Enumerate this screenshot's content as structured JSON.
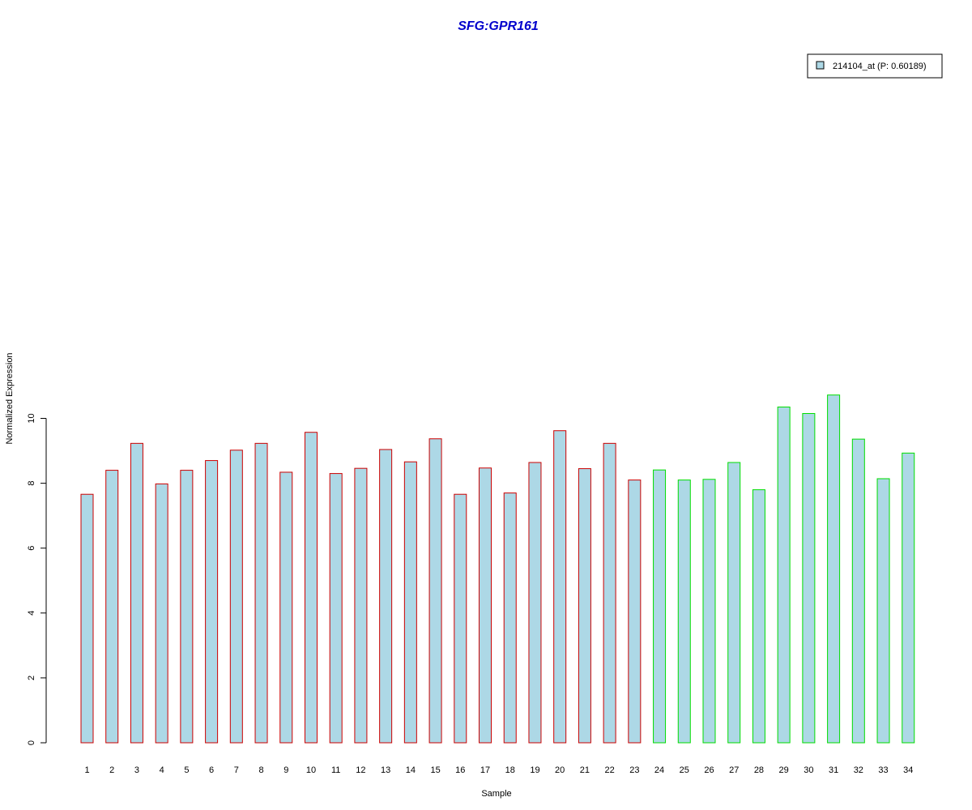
{
  "chart_data": {
    "type": "bar",
    "title": "SFG:GPR161",
    "xlabel": "Sample",
    "ylabel": "Normalized Expression",
    "categories": [
      "1",
      "2",
      "3",
      "4",
      "5",
      "6",
      "7",
      "8",
      "9",
      "10",
      "11",
      "12",
      "13",
      "14",
      "15",
      "16",
      "17",
      "18",
      "19",
      "20",
      "21",
      "22",
      "23",
      "24",
      "25",
      "26",
      "27",
      "28",
      "29",
      "30",
      "31",
      "32",
      "33",
      "34"
    ],
    "series": [
      {
        "name": "214104_at (P: 0.60189)",
        "values": [
          7.66,
          8.4,
          9.23,
          7.98,
          8.4,
          8.7,
          9.02,
          9.23,
          8.34,
          9.57,
          8.3,
          8.46,
          9.04,
          8.66,
          9.37,
          7.66,
          8.47,
          7.7,
          8.64,
          9.62,
          8.45,
          9.23,
          8.1,
          8.41,
          8.1,
          8.12,
          8.64,
          7.8,
          10.35,
          10.15,
          10.72,
          9.36,
          8.14,
          8.93
        ]
      }
    ],
    "group_colors": [
      "#cc0000",
      "#cc0000",
      "#cc0000",
      "#cc0000",
      "#cc0000",
      "#cc0000",
      "#cc0000",
      "#cc0000",
      "#cc0000",
      "#cc0000",
      "#cc0000",
      "#cc0000",
      "#cc0000",
      "#cc0000",
      "#cc0000",
      "#cc0000",
      "#cc0000",
      "#cc0000",
      "#cc0000",
      "#cc0000",
      "#cc0000",
      "#cc0000",
      "#cc0000",
      "#00dd00",
      "#00dd00",
      "#00dd00",
      "#00dd00",
      "#00dd00",
      "#00dd00",
      "#00dd00",
      "#00dd00",
      "#00dd00",
      "#00dd00",
      "#00dd00"
    ],
    "fill_color": "#add8e6",
    "title_color": "#0000cc",
    "ylim": [
      0,
      10.72
    ],
    "yticks": [
      0,
      2,
      4,
      6,
      8,
      10
    ],
    "legend_position": "top-right",
    "grid": false
  }
}
